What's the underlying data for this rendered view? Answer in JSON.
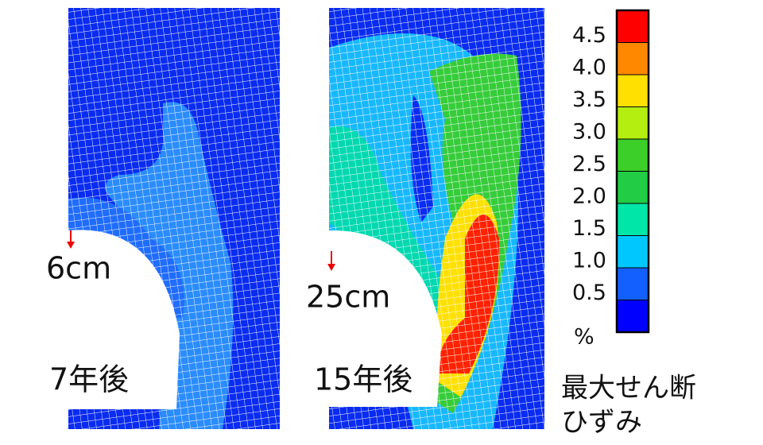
{
  "panels": [
    {
      "label": "7年後",
      "displacement": "6cm"
    },
    {
      "label": "15年後",
      "displacement": "25cm"
    }
  ],
  "colorbar": {
    "range": [
      0,
      5
    ],
    "colors": [
      "#0000ff",
      "#1460ff",
      "#00c8ff",
      "#00e6a8",
      "#22cc44",
      "#3ccf2a",
      "#b4ee10",
      "#ffe000",
      "#ff8800",
      "#ff0000"
    ],
    "ticks": [
      0.5,
      {
        "value": 1.0,
        "label": "1.0"
      },
      1.5,
      {
        "value": 2.0,
        "label": "2.0"
      },
      2.5,
      {
        "value": 3.0,
        "label": "3.0"
      },
      3.5,
      {
        "value": 4.0,
        "label": "4.0"
      },
      4.5
    ],
    "unit": "%",
    "title_lines": [
      "最大せん断",
      "ひずみ"
    ]
  }
}
